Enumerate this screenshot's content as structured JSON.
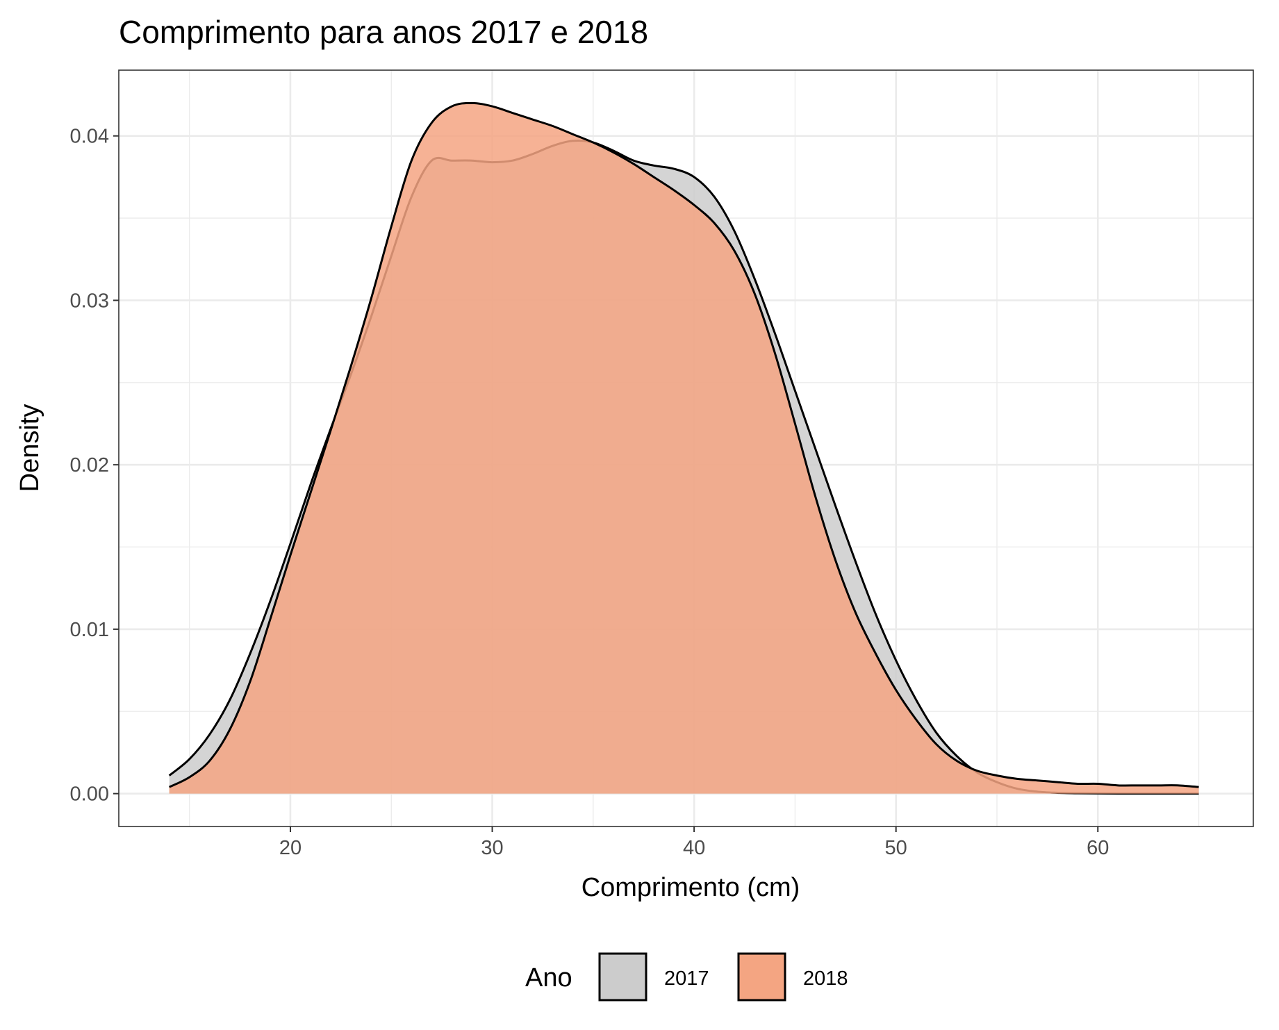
{
  "chart_data": {
    "type": "area",
    "subtype": "density",
    "title": "Comprimento para anos 2017 e 2018",
    "xlabel": "Comprimento (cm)",
    "ylabel": "Density",
    "xlim": [
      11.5,
      67.7
    ],
    "ylim": [
      -0.002,
      0.044
    ],
    "x_ticks": [
      20,
      30,
      40,
      50,
      60
    ],
    "x_tick_labels": [
      "20",
      "30",
      "40",
      "50",
      "60"
    ],
    "y_ticks": [
      0.0,
      0.01,
      0.02,
      0.03,
      0.04
    ],
    "y_tick_labels": [
      "0.00",
      "0.01",
      "0.02",
      "0.03",
      "0.04"
    ],
    "grid": true,
    "legend": {
      "title": "Ano",
      "position": "bottom"
    },
    "series": [
      {
        "name": "2017",
        "color": "#cccccc",
        "x": [
          14,
          15,
          16,
          17,
          18,
          19,
          20,
          21,
          22,
          23,
          24,
          25,
          26,
          27,
          28,
          29,
          30,
          31,
          32,
          33,
          34,
          35,
          36,
          37,
          38,
          39,
          40,
          41,
          42,
          43,
          44,
          45,
          46,
          47,
          48,
          49,
          50,
          51,
          52,
          53,
          54,
          55,
          56,
          57,
          58,
          59,
          60,
          61,
          62,
          63,
          64,
          65
        ],
        "y": [
          0.0011,
          0.0021,
          0.0036,
          0.0057,
          0.0085,
          0.0117,
          0.0152,
          0.0188,
          0.0222,
          0.0255,
          0.029,
          0.0327,
          0.0363,
          0.0385,
          0.0385,
          0.0385,
          0.0384,
          0.0385,
          0.0389,
          0.0394,
          0.0397,
          0.0396,
          0.0391,
          0.0385,
          0.0382,
          0.038,
          0.0375,
          0.0363,
          0.0342,
          0.0313,
          0.028,
          0.0245,
          0.021,
          0.0175,
          0.0141,
          0.0109,
          0.0081,
          0.0057,
          0.0037,
          0.0023,
          0.0013,
          0.0007,
          0.0003,
          0.00012,
          5e-05,
          2e-05,
          1e-05,
          0.0,
          0.0,
          0.0,
          0.0,
          0.0
        ]
      },
      {
        "name": "2018",
        "color": "#f4a582",
        "x": [
          14,
          15,
          16,
          17,
          18,
          19,
          20,
          21,
          22,
          23,
          24,
          25,
          26,
          27,
          28,
          29,
          30,
          31,
          32,
          33,
          34,
          35,
          36,
          37,
          38,
          39,
          40,
          41,
          42,
          43,
          44,
          45,
          46,
          47,
          48,
          49,
          50,
          51,
          52,
          53,
          54,
          55,
          56,
          57,
          58,
          59,
          60,
          61,
          62,
          63,
          64,
          65
        ],
        "y": [
          0.0004,
          0.001,
          0.002,
          0.0039,
          0.0068,
          0.0106,
          0.0145,
          0.0183,
          0.0221,
          0.026,
          0.0301,
          0.0345,
          0.0385,
          0.0408,
          0.0418,
          0.042,
          0.0418,
          0.0414,
          0.041,
          0.0406,
          0.0401,
          0.0396,
          0.039,
          0.0383,
          0.0375,
          0.0367,
          0.0358,
          0.0347,
          0.033,
          0.0304,
          0.0268,
          0.0225,
          0.0181,
          0.0142,
          0.011,
          0.0085,
          0.0063,
          0.0045,
          0.003,
          0.002,
          0.0014,
          0.0011,
          0.0009,
          0.0008,
          0.0007,
          0.0006,
          0.0006,
          0.0005,
          0.0005,
          0.0005,
          0.0005,
          0.0004
        ]
      }
    ]
  }
}
